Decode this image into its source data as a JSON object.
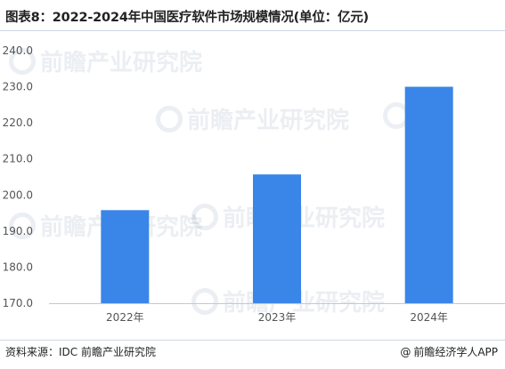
{
  "title": "图表8：2022-2024年中国医疗软件市场规模情况(单位：亿元)",
  "footer": {
    "source": "资料来源：IDC 前瞻产业研究院",
    "credit_symbol": "@",
    "credit": "前瞻经济学人APP"
  },
  "watermark": "前瞻产业研究院",
  "colors": {
    "bar": "#3a86e8",
    "axis": "#c8c8c8",
    "tick_text": "#555555"
  },
  "chart_data": {
    "type": "bar",
    "categories": [
      "2022年",
      "2023年",
      "2024年"
    ],
    "values": [
      195.8,
      205.7,
      230.0
    ],
    "ylim": [
      170.0,
      240.0
    ],
    "yticks": [
      "170.0",
      "180.0",
      "190.0",
      "200.0",
      "210.0",
      "220.0",
      "230.0",
      "240.0"
    ],
    "grid": false,
    "xlabel": "",
    "ylabel": ""
  }
}
